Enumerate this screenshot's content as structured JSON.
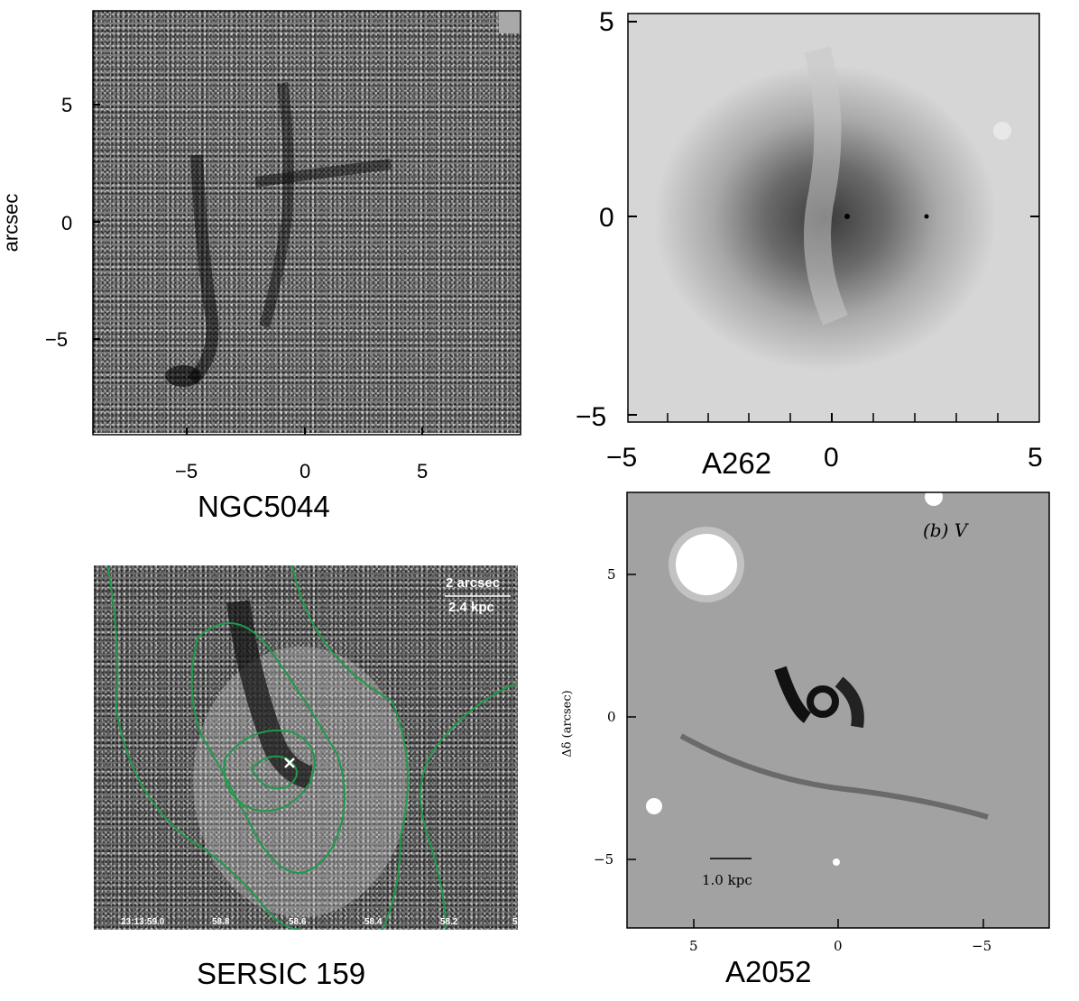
{
  "panels": {
    "ngc5044": {
      "caption": "NGC5044",
      "ylabel": "arcsec",
      "xticks": [
        "−5",
        "0",
        "5"
      ],
      "yticks": [
        "5",
        "0",
        "−5"
      ]
    },
    "a262": {
      "caption": "A262",
      "xticks": [
        "−5",
        "0",
        "5"
      ],
      "yticks": [
        "5",
        "0",
        "−5"
      ]
    },
    "sersic159": {
      "caption": "SERSIC 159",
      "scale_top": "2 arcsec",
      "scale_bottom": "2.4 kpc",
      "ra_ticks": [
        "23:13:59.0",
        "58.8",
        "58.6",
        "58.4",
        "58.2",
        "5"
      ],
      "contour_color": "#1f9a4a"
    },
    "a2052": {
      "caption": "A2052",
      "band_label": "(b) V",
      "ylabel": "Δδ (arcsec)",
      "scale_label": "1.0 kpc",
      "xticks": [
        "5",
        "0",
        "−5"
      ],
      "yticks": [
        "5",
        "0",
        "−5"
      ]
    }
  }
}
